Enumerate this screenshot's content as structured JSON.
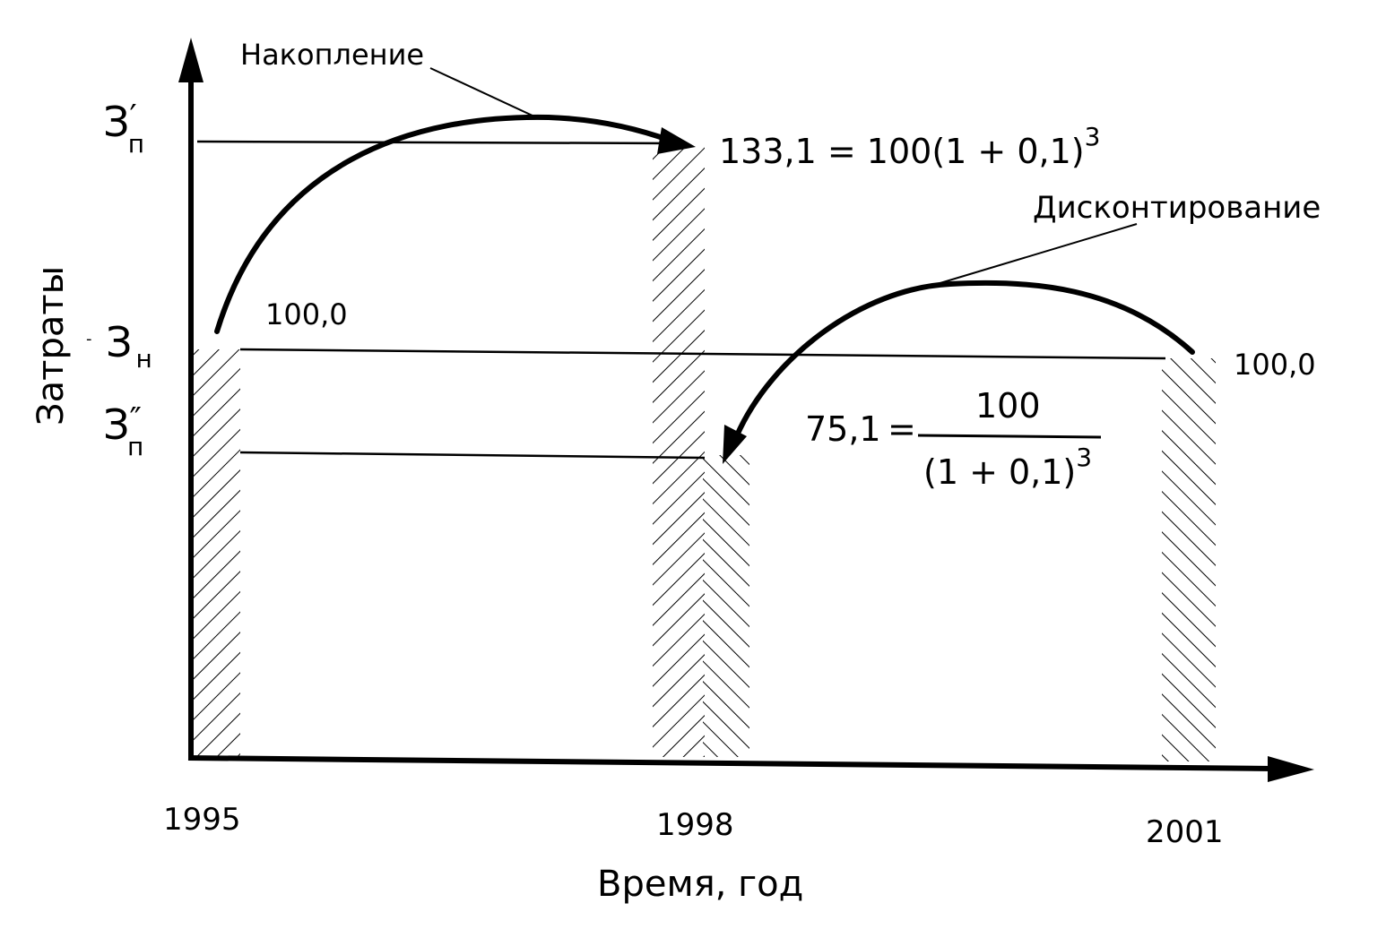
{
  "labels": {
    "y_axis": "Затраты",
    "x_axis": "Время, год",
    "accumulation": "Накопление",
    "discounting": "Дисконтирование"
  },
  "y_ticks": {
    "zp_prime_base": "З",
    "zp_prime_sup": "′",
    "zp_prime_sub": "п",
    "zn_base": "З",
    "zn_sub": "н",
    "zp_dprime_base": "З",
    "zp_dprime_sup": "″",
    "zp_dprime_sub": "п"
  },
  "x_ticks": [
    "1995",
    "1998",
    "2001"
  ],
  "values": {
    "start_left": "100,0",
    "start_right": "100,0"
  },
  "formulas": {
    "accumulated_lhs": "133,1",
    "accumulated_rhs": "= 100(1 + 0,1)",
    "accumulated_exp": "3",
    "discounted_lhs": "75,1",
    "discounted_eq": "=",
    "discounted_num": "100",
    "discounted_den": "(1 + 0,1)",
    "discounted_exp": "3"
  }
}
